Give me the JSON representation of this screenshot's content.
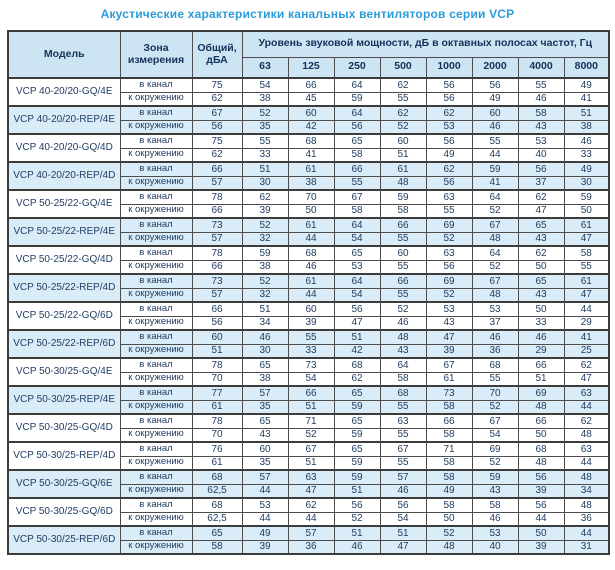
{
  "title": "Акустические характеристики канальных вентиляторов  серии VCP",
  "colors": {
    "title_blue": "#2b9cd8",
    "header_bg": "#cde4f2",
    "highlight_row_bg": "#d9ecf7",
    "text_navy": "#1e3a5e",
    "border_dark": "#3c3c3c"
  },
  "table": {
    "headers": {
      "model": "Модель",
      "zone": "Зона\nизмерения",
      "total": "Общий,\nдБА",
      "levels": "Уровень звуковой мощности, дБ в октавных полосах частот, Гц"
    },
    "frequencies": [
      "63",
      "125",
      "250",
      "500",
      "1000",
      "2000",
      "4000",
      "8000"
    ],
    "zones": [
      "в канал",
      "к окружению"
    ],
    "rows": [
      {
        "model": "VCP 40-20/20-GQ/4E",
        "highlighted": false,
        "in": {
          "total": "75",
          "levels": [
            "54",
            "66",
            "64",
            "62",
            "56",
            "56",
            "55",
            "49"
          ]
        },
        "out": {
          "total": "62",
          "levels": [
            "38",
            "45",
            "59",
            "55",
            "56",
            "49",
            "46",
            "41"
          ]
        }
      },
      {
        "model": "VCP 40-20/20-REP/4E",
        "highlighted": true,
        "in": {
          "total": "67",
          "levels": [
            "52",
            "60",
            "64",
            "62",
            "62",
            "60",
            "58",
            "51"
          ]
        },
        "out": {
          "total": "56",
          "levels": [
            "35",
            "42",
            "56",
            "52",
            "53",
            "46",
            "43",
            "38"
          ]
        }
      },
      {
        "model": "VCP 40-20/20-GQ/4D",
        "highlighted": false,
        "in": {
          "total": "75",
          "levels": [
            "55",
            "68",
            "65",
            "60",
            "56",
            "55",
            "53",
            "46"
          ]
        },
        "out": {
          "total": "62",
          "levels": [
            "33",
            "41",
            "58",
            "51",
            "49",
            "44",
            "40",
            "33"
          ]
        }
      },
      {
        "model": "VCP 40-20/20-REP/4D",
        "highlighted": true,
        "in": {
          "total": "66",
          "levels": [
            "51",
            "61",
            "66",
            "61",
            "62",
            "59",
            "56",
            "49"
          ]
        },
        "out": {
          "total": "57",
          "levels": [
            "30",
            "38",
            "55",
            "48",
            "56",
            "41",
            "37",
            "30"
          ]
        }
      },
      {
        "model": "VCP 50-25/22-GQ/4E",
        "highlighted": false,
        "in": {
          "total": "78",
          "levels": [
            "62",
            "70",
            "67",
            "59",
            "63",
            "64",
            "62",
            "59"
          ]
        },
        "out": {
          "total": "66",
          "levels": [
            "39",
            "50",
            "58",
            "58",
            "55",
            "52",
            "47",
            "50"
          ]
        }
      },
      {
        "model": "VCP 50-25/22-REP/4E",
        "highlighted": true,
        "in": {
          "total": "73",
          "levels": [
            "52",
            "61",
            "64",
            "66",
            "69",
            "67",
            "65",
            "61"
          ]
        },
        "out": {
          "total": "57",
          "levels": [
            "32",
            "44",
            "54",
            "55",
            "52",
            "48",
            "43",
            "47"
          ]
        }
      },
      {
        "model": "VCP 50-25/22-GQ/4D",
        "highlighted": false,
        "in": {
          "total": "78",
          "levels": [
            "59",
            "68",
            "65",
            "60",
            "63",
            "64",
            "62",
            "58"
          ]
        },
        "out": {
          "total": "66",
          "levels": [
            "38",
            "46",
            "53",
            "55",
            "56",
            "52",
            "50",
            "55"
          ]
        }
      },
      {
        "model": "VCP 50-25/22-REP/4D",
        "highlighted": true,
        "in": {
          "total": "73",
          "levels": [
            "52",
            "61",
            "64",
            "66",
            "69",
            "67",
            "65",
            "61"
          ]
        },
        "out": {
          "total": "57",
          "levels": [
            "32",
            "44",
            "54",
            "55",
            "52",
            "48",
            "43",
            "47"
          ]
        }
      },
      {
        "model": "VCP 50-25/22-GQ/6D",
        "highlighted": false,
        "in": {
          "total": "66",
          "levels": [
            "51",
            "60",
            "56",
            "52",
            "53",
            "53",
            "50",
            "44"
          ]
        },
        "out": {
          "total": "56",
          "levels": [
            "34",
            "39",
            "47",
            "46",
            "43",
            "37",
            "33",
            "29"
          ]
        }
      },
      {
        "model": "VCP 50-25/22-REP/6D",
        "highlighted": true,
        "in": {
          "total": "60",
          "levels": [
            "46",
            "55",
            "51",
            "48",
            "47",
            "46",
            "46",
            "41"
          ]
        },
        "out": {
          "total": "51",
          "levels": [
            "30",
            "33",
            "42",
            "43",
            "39",
            "36",
            "29",
            "25"
          ]
        }
      },
      {
        "model": "VCP 50-30/25-GQ/4E",
        "highlighted": false,
        "in": {
          "total": "78",
          "levels": [
            "65",
            "73",
            "68",
            "64",
            "67",
            "68",
            "66",
            "62"
          ]
        },
        "out": {
          "total": "70",
          "levels": [
            "38",
            "54",
            "62",
            "58",
            "61",
            "55",
            "51",
            "47"
          ]
        }
      },
      {
        "model": "VCP 50-30/25-REP/4E",
        "highlighted": true,
        "in": {
          "total": "77",
          "levels": [
            "57",
            "66",
            "65",
            "68",
            "73",
            "70",
            "69",
            "63"
          ]
        },
        "out": {
          "total": "61",
          "levels": [
            "35",
            "51",
            "59",
            "55",
            "58",
            "52",
            "48",
            "44"
          ]
        }
      },
      {
        "model": "VCP 50-30/25-GQ/4D",
        "highlighted": false,
        "in": {
          "total": "78",
          "levels": [
            "65",
            "71",
            "65",
            "63",
            "66",
            "67",
            "66",
            "62"
          ]
        },
        "out": {
          "total": "70",
          "levels": [
            "43",
            "52",
            "59",
            "55",
            "58",
            "54",
            "50",
            "48"
          ]
        }
      },
      {
        "model": "VCP 50-30/25-REP/4D",
        "highlighted": false,
        "in": {
          "total": "76",
          "levels": [
            "60",
            "67",
            "65",
            "67",
            "71",
            "69",
            "68",
            "63"
          ]
        },
        "out": {
          "total": "61",
          "levels": [
            "35",
            "51",
            "59",
            "55",
            "58",
            "52",
            "48",
            "44"
          ]
        }
      },
      {
        "model": "VCP 50-30/25-GQ/6E",
        "highlighted": true,
        "in": {
          "total": "68",
          "levels": [
            "57",
            "63",
            "59",
            "57",
            "58",
            "59",
            "56",
            "48"
          ]
        },
        "out": {
          "total": "62,5",
          "levels": [
            "44",
            "47",
            "51",
            "46",
            "49",
            "43",
            "39",
            "34"
          ]
        }
      },
      {
        "model": "VCP 50-30/25-GQ/6D",
        "highlighted": false,
        "in": {
          "total": "68",
          "levels": [
            "53",
            "62",
            "56",
            "56",
            "58",
            "58",
            "56",
            "48"
          ]
        },
        "out": {
          "total": "62,5",
          "levels": [
            "44",
            "44",
            "52",
            "54",
            "50",
            "46",
            "44",
            "36"
          ]
        }
      },
      {
        "model": "VCP 50-30/25-REP/6D",
        "highlighted": true,
        "in": {
          "total": "65",
          "levels": [
            "49",
            "57",
            "51",
            "51",
            "52",
            "53",
            "50",
            "44"
          ]
        },
        "out": {
          "total": "58",
          "levels": [
            "39",
            "36",
            "46",
            "47",
            "48",
            "40",
            "39",
            "31"
          ]
        }
      }
    ]
  }
}
